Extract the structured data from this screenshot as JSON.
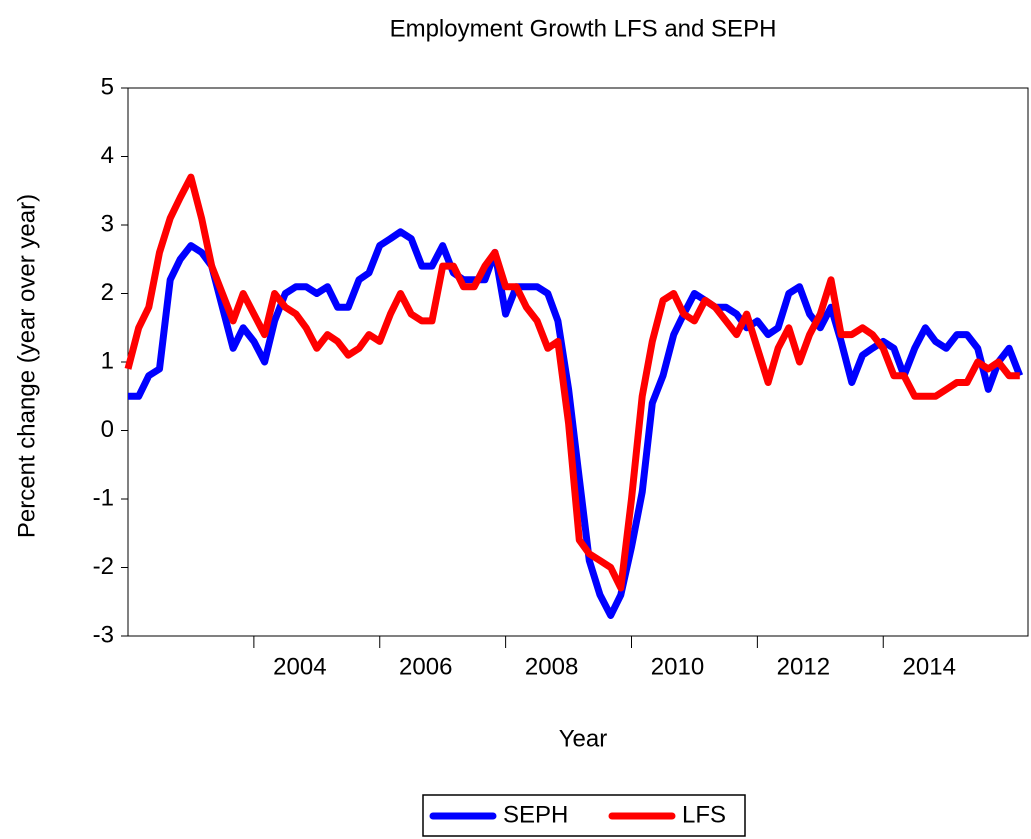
{
  "chart_data": {
    "type": "line",
    "title": "Employment Growth LFS and SEPH",
    "xlabel": "Year",
    "ylabel": "Percent change (year over year)",
    "x": [
      2002,
      2002.17,
      2002.33,
      2002.5,
      2002.67,
      2002.83,
      2003,
      2003.17,
      2003.33,
      2003.5,
      2003.67,
      2003.83,
      2004,
      2004.17,
      2004.33,
      2004.5,
      2004.67,
      2004.83,
      2005,
      2005.17,
      2005.33,
      2005.5,
      2005.67,
      2005.83,
      2006,
      2006.17,
      2006.33,
      2006.5,
      2006.67,
      2006.83,
      2007,
      2007.17,
      2007.33,
      2007.5,
      2007.67,
      2007.83,
      2008,
      2008.17,
      2008.33,
      2008.5,
      2008.67,
      2008.83,
      2009,
      2009.17,
      2009.33,
      2009.5,
      2009.67,
      2009.83,
      2010,
      2010.17,
      2010.33,
      2010.5,
      2010.67,
      2010.83,
      2011,
      2011.17,
      2011.33,
      2011.5,
      2011.67,
      2011.83,
      2012,
      2012.17,
      2012.33,
      2012.5,
      2012.67,
      2012.83,
      2013,
      2013.17,
      2013.33,
      2013.5,
      2013.67,
      2013.83,
      2014,
      2014.17,
      2014.33,
      2014.5,
      2014.67,
      2014.83,
      2015,
      2015.17,
      2015.33,
      2015.5,
      2015.67,
      2015.83,
      2016,
      2016.17
    ],
    "series": [
      {
        "name": "SEPH",
        "color": "#0000ff",
        "values": [
          0.5,
          0.5,
          0.8,
          0.9,
          2.2,
          2.5,
          2.7,
          2.6,
          2.4,
          1.8,
          1.2,
          1.5,
          1.3,
          1.0,
          1.6,
          2.0,
          2.1,
          2.1,
          2.0,
          2.1,
          1.8,
          1.8,
          2.2,
          2.3,
          2.7,
          2.8,
          2.9,
          2.8,
          2.4,
          2.4,
          2.7,
          2.3,
          2.2,
          2.2,
          2.2,
          2.6,
          1.7,
          2.1,
          2.1,
          2.1,
          2.0,
          1.6,
          0.6,
          -0.7,
          -1.9,
          -2.4,
          -2.7,
          -2.4,
          -1.7,
          -0.9,
          0.4,
          0.8,
          1.4,
          1.7,
          2.0,
          1.9,
          1.8,
          1.8,
          1.7,
          1.5,
          1.6,
          1.4,
          1.5,
          2.0,
          2.1,
          1.7,
          1.5,
          1.8,
          1.3,
          0.7,
          1.1,
          1.2,
          1.3,
          1.2,
          0.8,
          1.2,
          1.5,
          1.3,
          1.2,
          1.4,
          1.4,
          1.2,
          0.6,
          1.0,
          1.2,
          0.8
        ]
      },
      {
        "name": "LFS",
        "color": "#ff0000",
        "values": [
          0.9,
          1.5,
          1.8,
          2.6,
          3.1,
          3.4,
          3.7,
          3.1,
          2.4,
          2.0,
          1.6,
          2.0,
          1.7,
          1.4,
          2.0,
          1.8,
          1.7,
          1.5,
          1.2,
          1.4,
          1.3,
          1.1,
          1.2,
          1.4,
          1.3,
          1.7,
          2.0,
          1.7,
          1.6,
          1.6,
          2.4,
          2.4,
          2.1,
          2.1,
          2.4,
          2.6,
          2.1,
          2.1,
          1.8,
          1.6,
          1.2,
          1.3,
          0.1,
          -1.6,
          -1.8,
          -1.9,
          -2.0,
          -2.3,
          -1.0,
          0.5,
          1.3,
          1.9,
          2.0,
          1.7,
          1.6,
          1.9,
          1.8,
          1.6,
          1.4,
          1.7,
          1.2,
          0.7,
          1.2,
          1.5,
          1.0,
          1.4,
          1.7,
          2.2,
          1.4,
          1.4,
          1.5,
          1.4,
          1.2,
          0.8,
          0.8,
          0.5,
          0.5,
          0.5,
          0.6,
          0.7,
          0.7,
          1.0,
          0.9,
          1.0,
          0.8,
          0.8
        ]
      }
    ],
    "xlim": [
      2002,
      2016.3
    ],
    "xticks": [
      2004,
      2006,
      2008,
      2010,
      2012,
      2014
    ],
    "ylim": [
      -3,
      5
    ],
    "yticks": [
      -3,
      -2,
      -1,
      0,
      1,
      2,
      3,
      4,
      5
    ],
    "grid": false,
    "legend": "bottom"
  }
}
